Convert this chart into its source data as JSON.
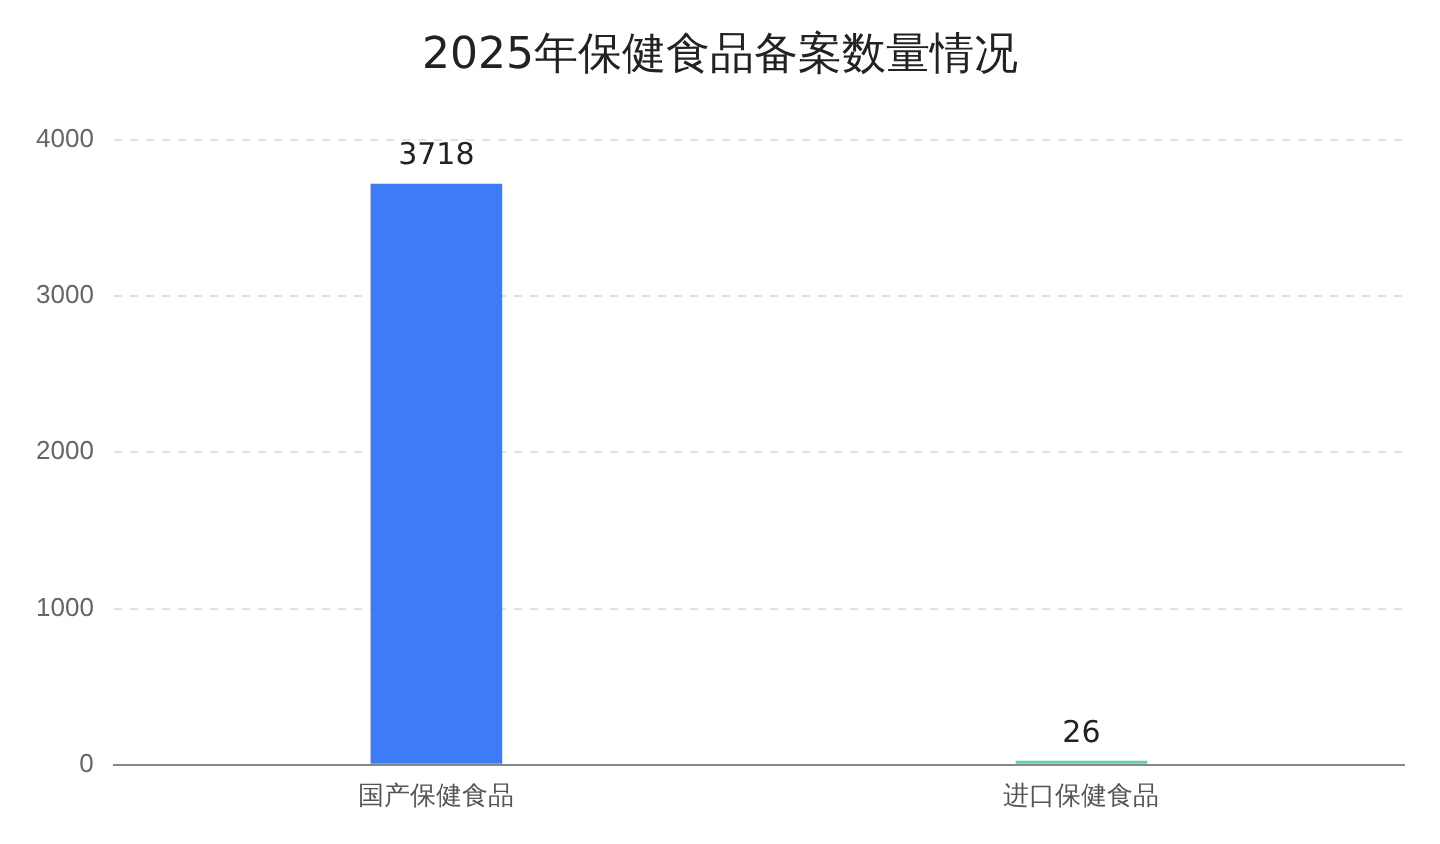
{
  "chart_data": {
    "type": "bar",
    "title": "2025年保健食品备案数量情况",
    "categories": [
      "国产保健食品",
      "进口保健食品"
    ],
    "values": [
      3718,
      26
    ],
    "colors": [
      "#3e7bf6",
      "#62d1a6"
    ],
    "ylim": [
      0,
      4000
    ],
    "yticks": [
      0,
      1000,
      2000,
      3000,
      4000
    ],
    "grid": "y",
    "data_labels": true,
    "legend": false
  }
}
